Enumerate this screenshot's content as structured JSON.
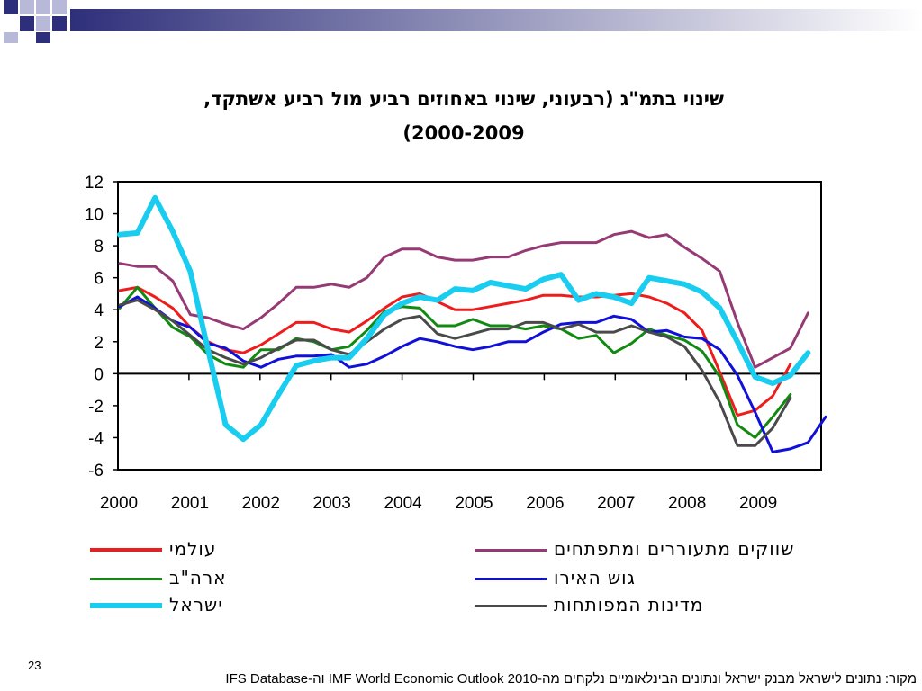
{
  "colors": {
    "deco_dark": "#2e2f7a",
    "deco_light": "#b8b9d8"
  },
  "slide": {
    "title_line1": "שינוי בתמ\"ג (רבעוני, שינוי באחוזים רביע מול רביע אשתקד,",
    "title_line2": "(2000-2009",
    "page_number": "23",
    "source": "מקור: נתונים לישראל מבנק ישראל ונתונים הבינלאומיים נלקחים מה-IMF World Economic Outlook 2010 וה-IFS Database"
  },
  "chart_data": {
    "type": "line",
    "title": "שינוי בתמ\"ג (רבעוני, שינוי באחוזים רביע מול רביע אשתקד, (2000-2009",
    "xlabel": "",
    "ylabel": "",
    "ylim": [
      -6,
      12
    ],
    "yticks": [
      12,
      10,
      8,
      6,
      4,
      2,
      0,
      -2,
      -4,
      -6
    ],
    "x_labels": [
      "2000",
      "2001",
      "2002",
      "2003",
      "2004",
      "2005",
      "2006",
      "2007",
      "2008",
      "2009"
    ],
    "grid": false,
    "legend_position": "bottom",
    "series": [
      {
        "name": "עולמי",
        "color": "#ee1c1c",
        "width": 3,
        "values": [
          5.2,
          5.4,
          4.8,
          4.1,
          2.9,
          2.0,
          1.5,
          1.3,
          1.8,
          2.5,
          3.2,
          3.2,
          2.8,
          2.6,
          3.3,
          4.1,
          4.8,
          5.0,
          4.5,
          4.0,
          4.0,
          4.2,
          4.4,
          4.6,
          4.9,
          4.9,
          4.8,
          4.8,
          4.9,
          5.0,
          4.8,
          4.4,
          3.8,
          2.7,
          0.1,
          -2.6,
          -2.3,
          -1.4,
          0.6
        ]
      },
      {
        "name": "שווקים מתעוררים ומתפתחים",
        "color": "#953a74",
        "width": 3,
        "values": [
          6.9,
          6.7,
          6.7,
          5.8,
          3.7,
          3.5,
          3.1,
          2.8,
          3.5,
          4.4,
          5.4,
          5.4,
          5.6,
          5.4,
          6.0,
          7.3,
          7.8,
          7.8,
          7.3,
          7.1,
          7.1,
          7.3,
          7.3,
          7.7,
          8.0,
          8.2,
          8.2,
          8.2,
          8.7,
          8.9,
          8.5,
          8.7,
          7.9,
          7.2,
          6.4,
          3.2,
          0.4,
          1.0,
          1.6,
          3.8
        ]
      },
      {
        "name": "ארה\"ב",
        "color": "#128a12",
        "width": 3,
        "values": [
          4.1,
          5.4,
          4.1,
          2.9,
          2.3,
          1.2,
          0.6,
          0.4,
          1.5,
          1.5,
          2.2,
          2.0,
          1.5,
          1.7,
          2.7,
          3.9,
          4.2,
          4.1,
          3.0,
          3.0,
          3.4,
          3.0,
          3.0,
          2.8,
          3.0,
          2.8,
          2.2,
          2.4,
          1.3,
          1.9,
          2.8,
          2.4,
          2.1,
          1.4,
          -0.2,
          -3.2,
          -4.0,
          -2.7,
          -1.3
        ]
      },
      {
        "name": "גוש האירו",
        "color": "#1010d8",
        "width": 3,
        "values": [
          4.2,
          4.8,
          4.1,
          3.3,
          2.9,
          1.9,
          1.6,
          0.8,
          0.4,
          0.9,
          1.1,
          1.1,
          1.2,
          0.4,
          0.6,
          1.1,
          1.7,
          2.2,
          2.0,
          1.7,
          1.5,
          1.7,
          2.0,
          2.0,
          2.6,
          3.1,
          3.2,
          3.2,
          3.6,
          3.4,
          2.6,
          2.7,
          2.3,
          2.2,
          1.5,
          -0.1,
          -2.4,
          -4.9,
          -4.7,
          -4.3,
          -2.7
        ]
      },
      {
        "name": "מדינות המפותחות",
        "color": "#4a4a4a",
        "width": 3,
        "values": [
          4.3,
          4.6,
          4.0,
          3.3,
          2.4,
          1.5,
          1.0,
          0.6,
          1.0,
          1.6,
          2.1,
          2.1,
          1.5,
          1.2,
          2.0,
          2.8,
          3.4,
          3.6,
          2.5,
          2.2,
          2.5,
          2.8,
          2.8,
          3.2,
          3.2,
          2.8,
          3.1,
          2.6,
          2.6,
          3.0,
          2.6,
          2.3,
          1.7,
          0.2,
          -1.8,
          -4.5,
          -4.5,
          -3.4,
          -1.5
        ]
      },
      {
        "name": "ישראל",
        "color": "#19cdf0",
        "width": 6,
        "values": [
          8.7,
          8.8,
          11.0,
          8.9,
          6.4,
          1.5,
          -3.2,
          -4.1,
          -3.2,
          -1.3,
          0.5,
          0.8,
          1.0,
          1.0,
          2.2,
          3.7,
          4.4,
          4.8,
          4.6,
          5.3,
          5.2,
          5.7,
          5.5,
          5.3,
          5.9,
          6.2,
          4.6,
          5.0,
          4.8,
          4.4,
          6.0,
          5.8,
          5.6,
          5.1,
          4.1,
          2.0,
          -0.2,
          -0.6,
          -0.1,
          1.3
        ]
      }
    ]
  },
  "legend": [
    {
      "label": "עולמי",
      "color": "#ee1c1c"
    },
    {
      "label": "שווקים מתעוררים ומתפתחים",
      "color": "#953a74"
    },
    {
      "label": "ארה\"ב",
      "color": "#128a12"
    },
    {
      "label": "גוש האירו",
      "color": "#1010d8"
    },
    {
      "label": "ישראל",
      "color": "#19cdf0"
    },
    {
      "label": "מדינות המפותחות",
      "color": "#4a4a4a"
    }
  ]
}
